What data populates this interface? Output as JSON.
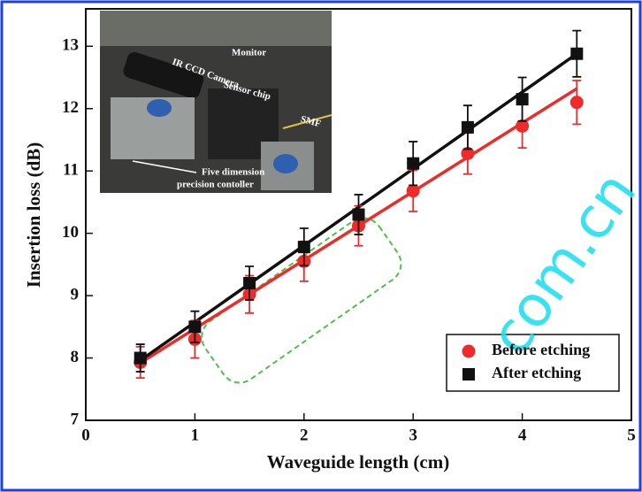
{
  "chart_data": {
    "type": "scatter",
    "xlabel": "Waveguide length (cm)",
    "ylabel": "Insertion loss (dB)",
    "xlim": [
      0,
      5
    ],
    "xticks": [
      0,
      1,
      2,
      3,
      4,
      5
    ],
    "ylim": [
      7,
      13.6
    ],
    "yticks": [
      7,
      8,
      9,
      10,
      11,
      12,
      13
    ],
    "x": [
      0.5,
      1,
      1.5,
      2,
      2.5,
      3,
      3.5,
      4,
      4.5
    ],
    "series": [
      {
        "name": "Before etching",
        "color": "#ee2a2a",
        "marker": "circle",
        "values": [
          7.93,
          8.3,
          9.02,
          9.55,
          10.12,
          10.68,
          11.28,
          11.72,
          12.1
        ],
        "errors": [
          0.25,
          0.3,
          0.3,
          0.32,
          0.32,
          0.33,
          0.33,
          0.35,
          0.35
        ],
        "fit": {
          "x": [
            0.5,
            4.5
          ],
          "values": [
            7.92,
            12.32
          ]
        }
      },
      {
        "name": "After etching",
        "color": "#111111",
        "marker": "square",
        "values": [
          8.0,
          8.5,
          9.2,
          9.78,
          10.3,
          11.12,
          11.7,
          12.15,
          12.88
        ],
        "errors": [
          0.22,
          0.25,
          0.27,
          0.3,
          0.32,
          0.35,
          0.35,
          0.35,
          0.37
        ],
        "fit": {
          "x": [
            0.5,
            4.5
          ],
          "values": [
            7.96,
            12.88
          ]
        }
      }
    ],
    "legend": "lower right",
    "inset_labels": [
      "IR CCD Camera",
      "Monitor",
      "Sensor chip",
      "SMF",
      "Five dimension",
      "precision contoller"
    ],
    "watermark": "com.cn"
  }
}
